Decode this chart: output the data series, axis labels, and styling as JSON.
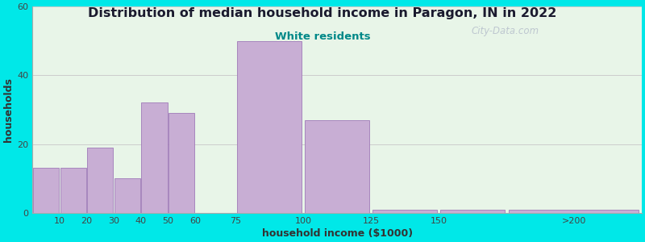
{
  "title": "Distribution of median household income in Paragon, IN in 2022",
  "subtitle": "White residents",
  "xlabel": "household income ($1000)",
  "ylabel": "households",
  "bar_heights": [
    13,
    13,
    19,
    10,
    32,
    29,
    50,
    27,
    1,
    1,
    1
  ],
  "bar_color": "#c8aed4",
  "bar_edge_color": "#a07ab8",
  "ylim": [
    0,
    60
  ],
  "yticks": [
    0,
    20,
    40,
    60
  ],
  "outer_bg": "#00e8e8",
  "plot_bg": "#e8f5e8",
  "title_color": "#1a1a2e",
  "subtitle_color": "#008888",
  "axis_label_color": "#333333",
  "tick_color": "#444444",
  "watermark": "City-Data.com",
  "bar_lefts": [
    0,
    10,
    20,
    30,
    40,
    50,
    75,
    100,
    125,
    150,
    175
  ],
  "bar_widths": [
    10,
    10,
    10,
    10,
    10,
    10,
    25,
    25,
    25,
    25,
    50
  ]
}
